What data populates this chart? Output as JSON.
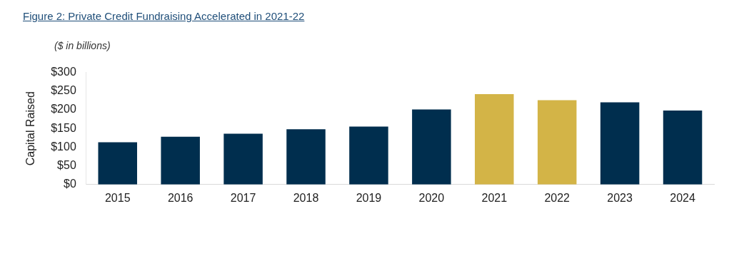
{
  "chart_data": {
    "type": "bar",
    "title": "Figure 2: Private Credit Fundraising Accelerated in 2021-22",
    "subtitle": "($ in billions)",
    "ylabel": "Capital Raised",
    "categories": [
      "2015",
      "2016",
      "2017",
      "2018",
      "2019",
      "2020",
      "2021",
      "2022",
      "2023",
      "2024"
    ],
    "values": [
      113,
      128,
      136,
      148,
      155,
      201,
      242,
      226,
      220,
      198
    ],
    "colors": [
      "#002e4e",
      "#002e4e",
      "#002e4e",
      "#002e4e",
      "#002e4e",
      "#002e4e",
      "#d3b447",
      "#d3b447",
      "#002e4e",
      "#002e4e"
    ],
    "ylim": [
      0,
      300
    ],
    "yticks": [
      {
        "value": 0,
        "label": "$0"
      },
      {
        "value": 50,
        "label": "$50"
      },
      {
        "value": 100,
        "label": "$100"
      },
      {
        "value": 150,
        "label": "$150"
      },
      {
        "value": 200,
        "label": "$200"
      },
      {
        "value": 250,
        "label": "$250"
      },
      {
        "value": 300,
        "label": "$300"
      }
    ],
    "grid": false,
    "legend": false
  }
}
